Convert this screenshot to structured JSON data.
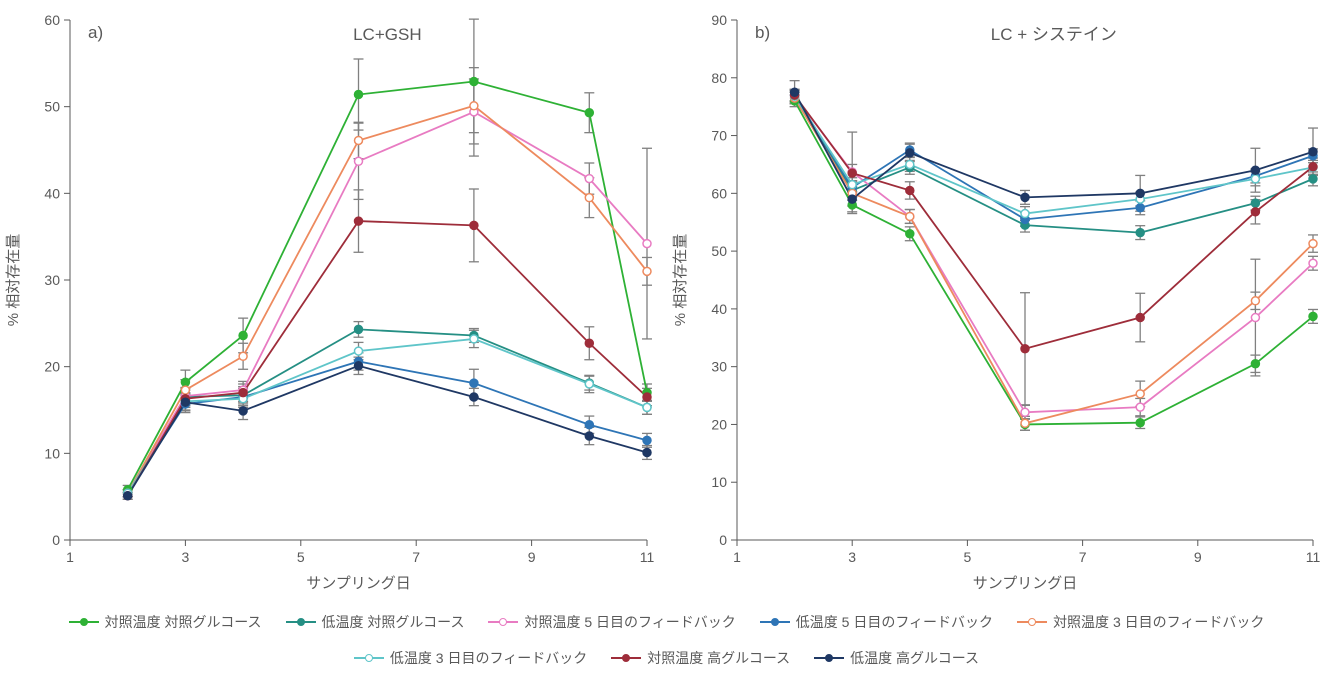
{
  "chart_a": {
    "panel_label": "a)",
    "title": "LC+GSH",
    "xlabel": "サンプリング日",
    "ylabel": "% 相対存在量",
    "xlim": [
      1,
      11
    ],
    "ylim": [
      0,
      60
    ],
    "xticks": [
      1,
      3,
      5,
      7,
      9,
      11
    ],
    "yticks": [
      0,
      10,
      20,
      30,
      40,
      50,
      60
    ],
    "title_fontsize": 17,
    "label_fontsize": 15,
    "tick_fontsize": 14,
    "text_color": "#595959",
    "background_color": "#ffffff",
    "line_width": 1.8,
    "marker_radius": 4,
    "err_color": "#808080",
    "err_width": 1.3,
    "cap_width": 5,
    "series": [
      {
        "name": "対照温度 対照グルコース",
        "color": "#2eb135",
        "fill": "#2eb135",
        "x": [
          2,
          3,
          4,
          6,
          8,
          10,
          11
        ],
        "y": [
          5.8,
          18.2,
          23.6,
          51.4,
          52.9,
          49.3,
          17.0
        ],
        "err": [
          0.5,
          1.4,
          2.0,
          4.1,
          7.2,
          2.3,
          1.0
        ]
      },
      {
        "name": "低温度 対照グルコース",
        "color": "#258f84",
        "fill": "#258f84",
        "x": [
          2,
          3,
          4,
          6,
          8,
          10,
          11
        ],
        "y": [
          5.4,
          16.5,
          16.7,
          24.3,
          23.6,
          18.1,
          15.3
        ],
        "err": [
          0.4,
          1.0,
          1.0,
          0.9,
          0.8,
          0.8,
          0.8
        ]
      },
      {
        "name": "対照温度 5 日目のフィードバック",
        "color": "#e87bc2",
        "fill": "#ffffff",
        "x": [
          2,
          3,
          4,
          6,
          8,
          10,
          11
        ],
        "y": [
          5.4,
          16.6,
          17.3,
          43.7,
          49.4,
          41.7,
          34.2
        ],
        "err": [
          0.4,
          1.0,
          1.0,
          4.4,
          5.1,
          1.8,
          11.0
        ]
      },
      {
        "name": "低温度 5 日目のフィードバック",
        "color": "#2e75b6",
        "fill": "#2e75b6",
        "x": [
          2,
          3,
          4,
          6,
          8,
          10,
          11
        ],
        "y": [
          5.4,
          15.7,
          16.5,
          20.6,
          18.1,
          13.3,
          11.5
        ],
        "err": [
          0.4,
          1.0,
          1.0,
          1.0,
          1.6,
          1.0,
          0.8
        ]
      },
      {
        "name": "対照温度 3 日目のフィードバック",
        "color": "#ed8a5e",
        "fill": "#ffffff",
        "x": [
          2,
          3,
          4,
          6,
          8,
          10,
          11
        ],
        "y": [
          5.4,
          17.3,
          21.2,
          46.1,
          50.1,
          39.5,
          31.0
        ],
        "err": [
          0.4,
          1.2,
          1.5,
          2.1,
          3.1,
          2.3,
          1.6
        ]
      },
      {
        "name": "低温度 3 日目のフィードバック",
        "color": "#5fc5c9",
        "fill": "#ffffff",
        "x": [
          2,
          3,
          4,
          6,
          8,
          10,
          11
        ],
        "y": [
          5.4,
          16.0,
          16.3,
          21.8,
          23.2,
          18.0,
          15.3
        ],
        "err": [
          0.4,
          1.0,
          1.0,
          1.0,
          1.0,
          1.0,
          0.8
        ]
      },
      {
        "name": "対照温度 高グルコース",
        "color": "#9e2d3a",
        "fill": "#9e2d3a",
        "x": [
          2,
          3,
          4,
          6,
          8,
          10,
          11
        ],
        "y": [
          5.1,
          16.3,
          17.0,
          36.8,
          36.3,
          22.7,
          16.5
        ],
        "err": [
          0.4,
          1.0,
          1.0,
          3.6,
          4.2,
          1.9,
          1.0
        ]
      },
      {
        "name": "低温度 高グルコース",
        "color": "#1f3864",
        "fill": "#1f3864",
        "x": [
          2,
          3,
          4,
          6,
          8,
          10,
          11
        ],
        "y": [
          5.1,
          15.9,
          14.9,
          20.1,
          16.5,
          12.0,
          10.1
        ],
        "err": [
          0.4,
          1.0,
          1.0,
          1.0,
          1.0,
          1.0,
          0.8
        ]
      }
    ]
  },
  "chart_b": {
    "panel_label": "b)",
    "title": "LC + システイン",
    "xlabel": "サンプリング日",
    "ylabel": "% 相対存在量",
    "xlim": [
      1,
      11
    ],
    "ylim": [
      0,
      90
    ],
    "xticks": [
      1,
      3,
      5,
      7,
      9,
      11
    ],
    "yticks": [
      0,
      10,
      20,
      30,
      40,
      50,
      60,
      70,
      80,
      90
    ],
    "title_fontsize": 17,
    "label_fontsize": 15,
    "tick_fontsize": 14,
    "text_color": "#595959",
    "background_color": "#ffffff",
    "line_width": 1.8,
    "marker_radius": 4,
    "err_color": "#808080",
    "err_width": 1.3,
    "cap_width": 5,
    "series": [
      {
        "name": "対照温度 対照グルコース",
        "color": "#2eb135",
        "fill": "#2eb135",
        "x": [
          2,
          3,
          4,
          6,
          8,
          10,
          11
        ],
        "y": [
          76.0,
          58.0,
          53.0,
          20.0,
          20.3,
          30.5,
          38.7
        ],
        "err": [
          1.0,
          1.5,
          1.2,
          1.0,
          1.0,
          1.5,
          1.2
        ]
      },
      {
        "name": "低温度 対照グルコース",
        "color": "#258f84",
        "fill": "#258f84",
        "x": [
          2,
          3,
          4,
          6,
          8,
          10,
          11
        ],
        "y": [
          76.5,
          60.5,
          64.5,
          54.5,
          53.2,
          58.3,
          62.5
        ],
        "err": [
          1.0,
          1.2,
          1.2,
          1.2,
          1.2,
          1.2,
          1.2
        ]
      },
      {
        "name": "対照温度 5 日目のフィードバック",
        "color": "#e87bc2",
        "fill": "#ffffff",
        "x": [
          2,
          3,
          4,
          6,
          8,
          10,
          11
        ],
        "y": [
          76.8,
          63.7,
          56.0,
          22.1,
          23.0,
          38.5,
          47.9
        ],
        "err": [
          1.0,
          6.9,
          1.2,
          1.2,
          1.5,
          10.1,
          1.2
        ]
      },
      {
        "name": "低温度 5 日目のフィードバック",
        "color": "#2e75b6",
        "fill": "#2e75b6",
        "x": [
          2,
          3,
          4,
          6,
          8,
          10,
          11
        ],
        "y": [
          77.0,
          61.0,
          67.5,
          55.5,
          57.5,
          63.0,
          66.5
        ],
        "err": [
          1.0,
          1.2,
          1.2,
          1.2,
          1.2,
          1.2,
          1.2
        ]
      },
      {
        "name": "対照温度 3 日目のフィードバック",
        "color": "#ed8a5e",
        "fill": "#ffffff",
        "x": [
          2,
          3,
          4,
          6,
          8,
          10,
          11
        ],
        "y": [
          76.5,
          60.0,
          56.0,
          20.2,
          25.3,
          41.4,
          51.3
        ],
        "err": [
          1.0,
          1.2,
          1.2,
          1.2,
          2.2,
          1.5,
          1.5
        ]
      },
      {
        "name": "低温度 3 日目のフィードバック",
        "color": "#5fc5c9",
        "fill": "#ffffff",
        "x": [
          2,
          3,
          4,
          6,
          8,
          10,
          11
        ],
        "y": [
          76.8,
          61.5,
          65.0,
          56.5,
          59.0,
          62.5,
          64.5
        ],
        "err": [
          1.0,
          1.2,
          1.2,
          1.2,
          1.2,
          1.2,
          1.2
        ]
      },
      {
        "name": "対照温度 高グルコース",
        "color": "#9e2d3a",
        "fill": "#9e2d3a",
        "x": [
          2,
          3,
          4,
          6,
          8,
          10,
          11
        ],
        "y": [
          77.0,
          63.5,
          60.5,
          33.1,
          38.5,
          56.8,
          64.6
        ],
        "err": [
          1.0,
          1.5,
          1.5,
          9.7,
          4.2,
          2.1,
          1.5
        ]
      },
      {
        "name": "低温度 高グルコース",
        "color": "#1f3864",
        "fill": "#1f3864",
        "x": [
          2,
          3,
          4,
          6,
          8,
          10,
          11
        ],
        "y": [
          77.5,
          59.0,
          67.0,
          59.3,
          60.0,
          64.0,
          67.2
        ],
        "err": [
          2.0,
          1.2,
          1.5,
          1.2,
          3.1,
          3.8,
          4.1
        ]
      }
    ]
  },
  "legend": {
    "items": [
      {
        "label": "対照温度 対照グルコース",
        "color": "#2eb135",
        "fill": "#2eb135"
      },
      {
        "label": "低温度 対照グルコース",
        "color": "#258f84",
        "fill": "#258f84"
      },
      {
        "label": "対照温度 5 日目のフィードバック",
        "color": "#e87bc2",
        "fill": "#ffffff"
      },
      {
        "label": "低温度 5 日目のフィードバック",
        "color": "#2e75b6",
        "fill": "#2e75b6"
      },
      {
        "label": "対照温度 3 日目のフィードバック",
        "color": "#ed8a5e",
        "fill": "#ffffff"
      },
      {
        "label": "低温度 3 日目のフィードバック",
        "color": "#5fc5c9",
        "fill": "#ffffff"
      },
      {
        "label": "対照温度 高グルコース",
        "color": "#9e2d3a",
        "fill": "#9e2d3a"
      },
      {
        "label": "低温度 高グルコース",
        "color": "#1f3864",
        "fill": "#1f3864"
      }
    ],
    "fontsize": 14,
    "text_color": "#595959"
  }
}
